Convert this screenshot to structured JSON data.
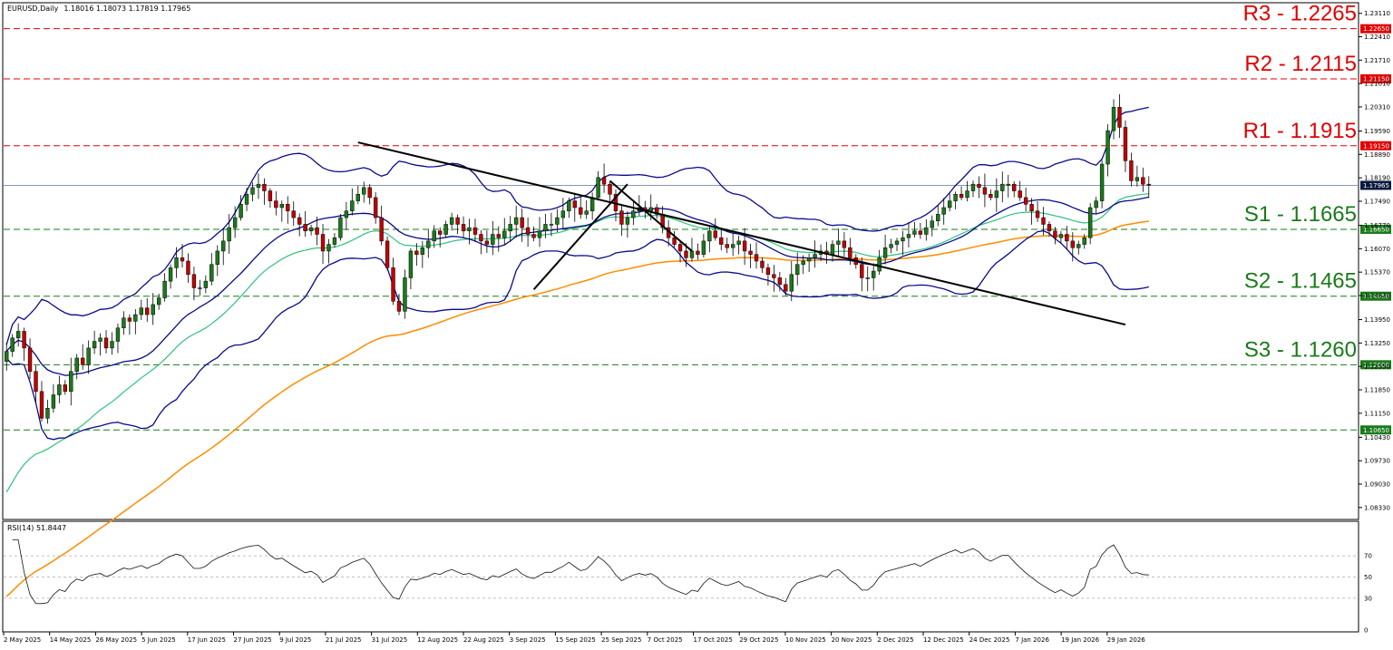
{
  "header": {
    "symbol": "EURUSD,Daily",
    "ohlc": "1.18016 1.18073 1.17819 1.17965",
    "rsi_label": "RSI(14) 51.8447"
  },
  "colors": {
    "resistance": "#e00000",
    "support": "#1a7a1a",
    "bollinger": "#0a0a8c",
    "ma_green": "#2ec27e",
    "ma_orange": "#ff8c00",
    "bull_candle": "#1a7a1a",
    "bear_candle": "#c00000",
    "trendline": "#000000",
    "current_price_tag": "#0a1a3c"
  },
  "chart_data": {
    "type": "candlestick",
    "price_axis": {
      "ylim": [
        1.08,
        1.234
      ],
      "ticks": [
        "1.23110",
        "1.22410",
        "1.21710",
        "1.21010",
        "1.20310",
        "1.19590",
        "1.18890",
        "1.18190",
        "1.17490",
        "1.16770",
        "1.16070",
        "1.15370",
        "1.14670",
        "1.13950",
        "1.13250",
        "1.12550",
        "1.11850",
        "1.11150",
        "1.10430",
        "1.09730",
        "1.09030",
        "1.08330"
      ]
    },
    "x_ticks": [
      "2 May 2025",
      "14 May 2025",
      "26 May 2025",
      "5 Jun 2025",
      "17 Jun 2025",
      "27 Jun 2025",
      "9 Jul 2025",
      "21 Jul 2025",
      "31 Jul 2025",
      "12 Aug 2025",
      "22 Aug 2025",
      "3 Sep 2025",
      "15 Sep 2025",
      "25 Sep 2025",
      "7 Oct 2025",
      "17 Oct 2025",
      "29 Oct 2025",
      "10 Nov 2025",
      "20 Nov 2025",
      "2 Dec 2025",
      "12 Dec 2025",
      "24 Dec 2025",
      "7 Jan 2026",
      "19 Jan 2026",
      "29 Jan 2026"
    ],
    "levels": [
      {
        "label": "R3 - 1.2265",
        "tag": "1.22650",
        "value": 1.2265,
        "kind": "resistance"
      },
      {
        "label": "R2 - 1.2115",
        "tag": "1.21150",
        "value": 1.2115,
        "kind": "resistance"
      },
      {
        "label": "R1 - 1.1915",
        "tag": "1.19150",
        "value": 1.1915,
        "kind": "resistance"
      },
      {
        "label": "S1 - 1.1665",
        "tag": "1.16650",
        "value": 1.1665,
        "kind": "support"
      },
      {
        "label": "S2 - 1.1465",
        "tag": "1.14650",
        "value": 1.1465,
        "kind": "support"
      },
      {
        "label": "S3 - 1.1260",
        "tag": "1.12600",
        "value": 1.126,
        "kind": "support"
      },
      {
        "label": "",
        "tag": "1.10650",
        "value": 1.1065,
        "kind": "support"
      }
    ],
    "current_price": {
      "tag": "1.17965",
      "value": 1.17965
    },
    "closes": [
      1.13,
      1.134,
      1.136,
      1.131,
      1.124,
      1.118,
      1.11,
      1.113,
      1.117,
      1.12,
      1.118,
      1.124,
      1.128,
      1.126,
      1.131,
      1.133,
      1.134,
      1.131,
      1.133,
      1.137,
      1.14,
      1.139,
      1.141,
      1.143,
      1.141,
      1.144,
      1.146,
      1.151,
      1.155,
      1.158,
      1.157,
      1.153,
      1.149,
      1.149,
      1.151,
      1.156,
      1.16,
      1.163,
      1.167,
      1.17,
      1.174,
      1.177,
      1.179,
      1.18,
      1.178,
      1.175,
      1.173,
      1.174,
      1.172,
      1.17,
      1.168,
      1.166,
      1.167,
      1.165,
      1.16,
      1.162,
      1.164,
      1.17,
      1.172,
      1.175,
      1.177,
      1.179,
      1.176,
      1.17,
      1.163,
      1.155,
      1.145,
      1.142,
      1.152,
      1.16,
      1.159,
      1.161,
      1.163,
      1.166,
      1.165,
      1.168,
      1.17,
      1.168,
      1.166,
      1.167,
      1.165,
      1.163,
      1.162,
      1.165,
      1.164,
      1.166,
      1.168,
      1.17,
      1.167,
      1.165,
      1.164,
      1.166,
      1.168,
      1.168,
      1.17,
      1.172,
      1.175,
      1.173,
      1.171,
      1.172,
      1.176,
      1.182,
      1.18,
      1.177,
      1.172,
      1.168,
      1.17,
      1.172,
      1.173,
      1.172,
      1.173,
      1.171,
      1.167,
      1.164,
      1.162,
      1.16,
      1.158,
      1.16,
      1.159,
      1.163,
      1.166,
      1.164,
      1.162,
      1.161,
      1.162,
      1.163,
      1.16,
      1.159,
      1.157,
      1.155,
      1.153,
      1.152,
      1.15,
      1.148,
      1.153,
      1.156,
      1.157,
      1.158,
      1.159,
      1.16,
      1.159,
      1.162,
      1.163,
      1.161,
      1.158,
      1.156,
      1.152,
      1.152,
      1.154,
      1.158,
      1.161,
      1.162,
      1.163,
      1.164,
      1.165,
      1.166,
      1.165,
      1.167,
      1.169,
      1.171,
      1.173,
      1.175,
      1.177,
      1.176,
      1.178,
      1.18,
      1.179,
      1.177,
      1.176,
      1.178,
      1.18,
      1.18,
      1.178,
      1.176,
      1.174,
      1.172,
      1.17,
      1.168,
      1.166,
      1.164,
      1.165,
      1.163,
      1.161,
      1.162,
      1.164,
      1.173,
      1.175,
      1.186,
      1.196,
      1.203,
      1.197,
      1.187,
      1.181,
      1.182,
      1.18,
      1.1797
    ]
  }
}
